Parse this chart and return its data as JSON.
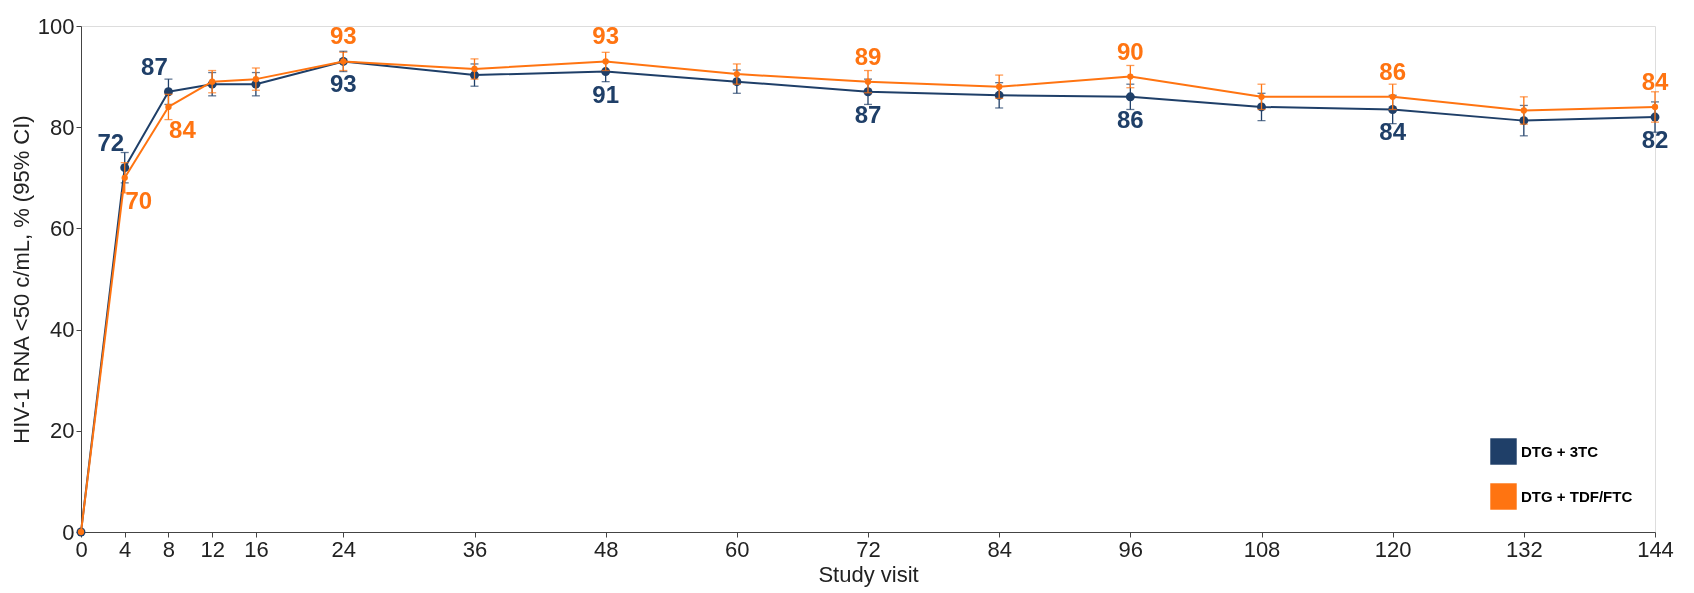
{
  "chart_data": {
    "type": "line",
    "xlabel": "Study visit",
    "ylabel": "HIV-1 RNA <50 c/mL, % (95% CI)",
    "x": [
      0,
      4,
      8,
      12,
      16,
      24,
      36,
      48,
      60,
      72,
      84,
      96,
      108,
      120,
      132,
      144
    ],
    "xlim": [
      0,
      144
    ],
    "xticks": [
      0,
      4,
      8,
      12,
      16,
      24,
      36,
      48,
      60,
      72,
      84,
      96,
      108,
      120,
      132,
      144
    ],
    "ylim": [
      0,
      100
    ],
    "yticks": [
      0,
      20,
      40,
      60,
      80,
      100
    ],
    "grid": false,
    "legend": "bottom right",
    "marker": "circle",
    "line_style": "solid",
    "series": [
      {
        "name": "DTG + 3TC",
        "color": "#1f3f68",
        "values": [
          0,
          72,
          87,
          88.5,
          88.5,
          93,
          90.3,
          91,
          89,
          87,
          86.3,
          86,
          84,
          83.5,
          81.3,
          82
        ],
        "errors": [
          null,
          3,
          2.5,
          2.3,
          2.3,
          2,
          2.2,
          2,
          2.3,
          2.5,
          2.5,
          2.5,
          2.7,
          2.8,
          3,
          3
        ],
        "value_labels": [
          null,
          "72",
          "87",
          null,
          null,
          "93",
          null,
          "91",
          null,
          "87",
          null,
          "86",
          null,
          "84",
          null,
          "82"
        ]
      },
      {
        "name": "DTG + TDF/FTC",
        "color": "#ff7411",
        "values": [
          0,
          70,
          84,
          89,
          89.5,
          93,
          91.5,
          93,
          90.5,
          89,
          88,
          90,
          86,
          86,
          83.3,
          84
        ],
        "errors": [
          null,
          3,
          2.5,
          2.2,
          2.2,
          1.8,
          2,
          1.8,
          2,
          2.2,
          2.3,
          2.2,
          2.5,
          2.5,
          2.7,
          3
        ],
        "value_labels": [
          null,
          "70",
          "84",
          null,
          null,
          "93",
          null,
          "93",
          null,
          "89",
          null,
          "90",
          null,
          "86",
          null,
          "84"
        ]
      }
    ]
  }
}
